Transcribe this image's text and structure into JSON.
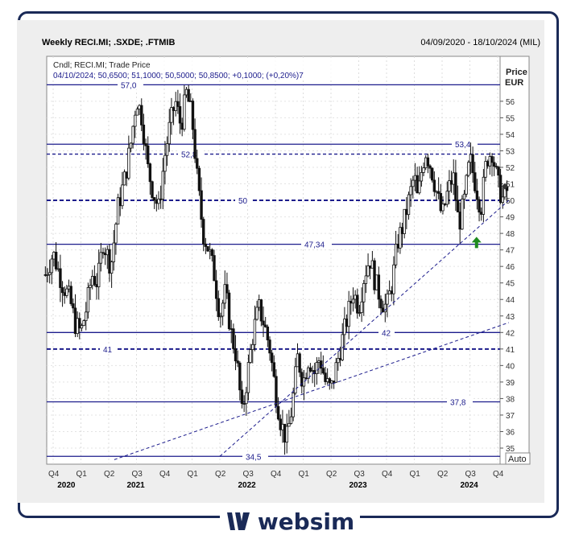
{
  "chart_data": {
    "type": "candlestick",
    "title": "Weekly RECI.MI; .SXDE; .FTMIB",
    "date_range": "04/09/2020 - 18/10/2024 (MIL)",
    "legend_line1": "Cndl; RECI.MI; Trade Price",
    "legend_line2": "04/10/2024; 50,6500; 51,1000; 50,5000; 50,8500; +0,1000; (+0,20%)7",
    "y_axis_title": "Price",
    "y_axis_unit": "EUR",
    "auto_label": "Auto",
    "ylim": [
      34.5,
      57
    ],
    "y_ticks": [
      35,
      36,
      37,
      38,
      39,
      40,
      41,
      42,
      43,
      44,
      45,
      46,
      47,
      48,
      49,
      50,
      51,
      52,
      53,
      54,
      55,
      56
    ],
    "quarters": [
      "Q4",
      "Q1",
      "Q2",
      "Q3",
      "Q4",
      "Q1",
      "Q2",
      "Q3",
      "Q4",
      "Q1",
      "Q2",
      "Q3",
      "Q4",
      "Q1",
      "Q2",
      "Q3",
      "Q4"
    ],
    "years": [
      "2020",
      "2021",
      "2022",
      "2023",
      "2024"
    ],
    "levels": [
      {
        "value": 57.0,
        "label": "57,0",
        "style": "solid"
      },
      {
        "value": 53.4,
        "label": "53,4",
        "style": "solid"
      },
      {
        "value": 52.8,
        "label": "52,8",
        "style": "dashed"
      },
      {
        "value": 50,
        "label": "50",
        "style": "dashed-bold"
      },
      {
        "value": 47.34,
        "label": "47,34",
        "style": "solid"
      },
      {
        "value": 42,
        "label": "42",
        "style": "solid"
      },
      {
        "value": 41,
        "label": "41",
        "style": "dashed-bold"
      },
      {
        "value": 37.8,
        "label": "37,8",
        "style": "solid"
      },
      {
        "value": 34.5,
        "label": "34,5",
        "style": "solid"
      }
    ],
    "trendlines": [
      {
        "from": [
          2022.25,
          34.5
        ],
        "to": [
          2024.85,
          50.0
        ]
      },
      {
        "from": [
          2021.3,
          34.3
        ],
        "to": [
          2024.85,
          42.6
        ]
      }
    ],
    "last_price": 50.85,
    "arrow_marker": {
      "x": 2024.56,
      "value": 47.5
    },
    "price_path": [
      [
        2020.68,
        45.5
      ],
      [
        2020.75,
        46.8
      ],
      [
        2020.83,
        45.0
      ],
      [
        2020.9,
        44.0
      ],
      [
        2020.95,
        42.5
      ],
      [
        2021.0,
        42.0
      ],
      [
        2021.05,
        43.5
      ],
      [
        2021.1,
        45.5
      ],
      [
        2021.15,
        45.0
      ],
      [
        2021.2,
        47.5
      ],
      [
        2021.27,
        46.0
      ],
      [
        2021.33,
        49.5
      ],
      [
        2021.4,
        51.5
      ],
      [
        2021.45,
        53.5
      ],
      [
        2021.5,
        56.2
      ],
      [
        2021.55,
        55.0
      ],
      [
        2021.6,
        52.0
      ],
      [
        2021.65,
        50.5
      ],
      [
        2021.7,
        49.5
      ],
      [
        2021.75,
        52.5
      ],
      [
        2021.8,
        54.5
      ],
      [
        2021.85,
        56.0
      ],
      [
        2021.9,
        54.5
      ],
      [
        2021.95,
        56.5
      ],
      [
        2022.0,
        55.0
      ],
      [
        2022.05,
        51.0
      ],
      [
        2022.1,
        48.0
      ],
      [
        2022.15,
        47.0
      ],
      [
        2022.2,
        45.5
      ],
      [
        2022.25,
        43.0
      ],
      [
        2022.3,
        44.5
      ],
      [
        2022.35,
        42.0
      ],
      [
        2022.4,
        40.5
      ],
      [
        2022.45,
        37.0
      ],
      [
        2022.5,
        39.5
      ],
      [
        2022.55,
        42.0
      ],
      [
        2022.6,
        43.5
      ],
      [
        2022.65,
        42.5
      ],
      [
        2022.7,
        41.0
      ],
      [
        2022.75,
        38.5
      ],
      [
        2022.8,
        36.5
      ],
      [
        2022.85,
        35.5
      ],
      [
        2022.9,
        37.5
      ],
      [
        2022.95,
        40.5
      ],
      [
        2023.0,
        39.0
      ],
      [
        2023.05,
        40.5
      ],
      [
        2023.1,
        39.5
      ],
      [
        2023.15,
        40.5
      ],
      [
        2023.2,
        39.0
      ],
      [
        2023.25,
        38.5
      ],
      [
        2023.3,
        40.0
      ],
      [
        2023.35,
        41.5
      ],
      [
        2023.4,
        43.0
      ],
      [
        2023.45,
        44.5
      ],
      [
        2023.5,
        43.5
      ],
      [
        2023.55,
        45.5
      ],
      [
        2023.6,
        46.5
      ],
      [
        2023.65,
        45.0
      ],
      [
        2023.7,
        44.0
      ],
      [
        2023.75,
        43.5
      ],
      [
        2023.8,
        45.0
      ],
      [
        2023.85,
        47.5
      ],
      [
        2023.9,
        48.5
      ],
      [
        2023.95,
        50.0
      ],
      [
        2024.0,
        51.5
      ],
      [
        2024.03,
        50.0
      ],
      [
        2024.07,
        52.0
      ],
      [
        2024.1,
        53.0
      ],
      [
        2024.15,
        52.0
      ],
      [
        2024.2,
        50.5
      ],
      [
        2024.25,
        49.0
      ],
      [
        2024.3,
        50.5
      ],
      [
        2024.35,
        51.5
      ],
      [
        2024.4,
        48.5
      ],
      [
        2024.45,
        50.0
      ],
      [
        2024.5,
        52.5
      ],
      [
        2024.55,
        51.0
      ],
      [
        2024.6,
        49.5
      ],
      [
        2024.65,
        52.5
      ],
      [
        2024.7,
        53.0
      ],
      [
        2024.75,
        51.0
      ],
      [
        2024.8,
        50.0
      ],
      [
        2024.85,
        50.85
      ]
    ]
  },
  "brand": {
    "name": "websim",
    "color": "#1a2a57"
  }
}
